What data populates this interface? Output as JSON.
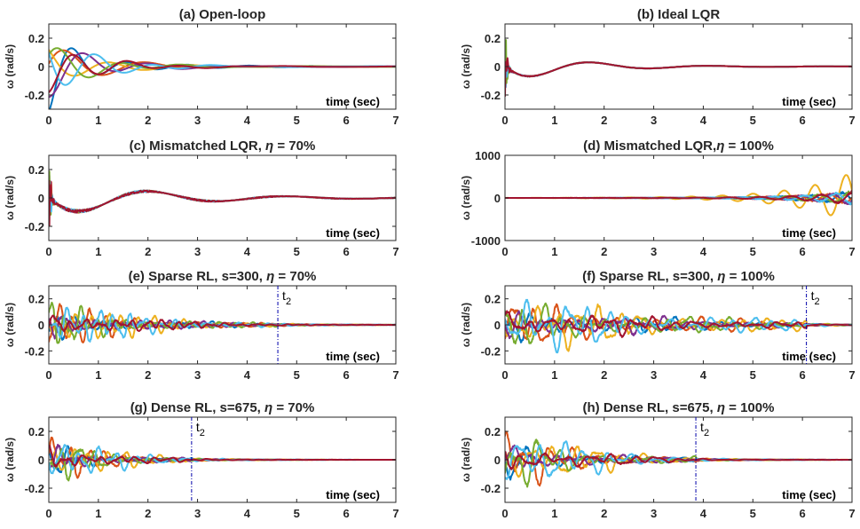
{
  "figure": {
    "y_symbol": "ω",
    "y_unit": "(rad/s)"
  },
  "colors": [
    "#0072BD",
    "#D95319",
    "#EDB120",
    "#7E2F8E",
    "#77AC30",
    "#4DBEEE",
    "#A2142F"
  ],
  "chart_data": [
    {
      "type": "line",
      "title_pre": "(a) Open-loop",
      "title_eta": "",
      "xlabel": "time (sec)",
      "ylabel": "ω (rad/s)",
      "xlim": [
        0,
        7
      ],
      "ylim": [
        -0.3,
        0.3
      ],
      "xticks": [
        0,
        1,
        2,
        3,
        4,
        5,
        6,
        7
      ],
      "yticks": [
        0.2,
        0,
        -0.2
      ],
      "ytick_labels": [
        "0.2",
        "0",
        "-0.2"
      ],
      "params": {
        "kind": "open",
        "amp": 0.22,
        "osc_f": 0.75,
        "decay": 1.1,
        "noise": 0,
        "settle": 7,
        "spread": 1.0,
        "seed": 1
      },
      "marker": null
    },
    {
      "type": "line",
      "title_pre": "(b) Ideal LQR",
      "title_eta": "",
      "xlabel": "time (sec)",
      "ylabel": "ω (rad/s)",
      "xlim": [
        0,
        7
      ],
      "ylim": [
        -0.3,
        0.3
      ],
      "xticks": [
        0,
        1,
        2,
        3,
        4,
        5,
        6,
        7
      ],
      "yticks": [
        0.2,
        0,
        -0.2
      ],
      "ytick_labels": [
        "0.2",
        "0",
        "-0.2"
      ],
      "params": {
        "kind": "lqr",
        "amp": 0.1,
        "osc_f": 0.42,
        "decay": 0.7,
        "noise": 0,
        "settle": 7,
        "spread": 0.15,
        "seed": 2
      },
      "marker": null
    },
    {
      "type": "line",
      "title_pre": "(c) Mismatched LQR, ",
      "title_eta": " = 70%",
      "xlabel": "time (sec)",
      "ylabel": "ω (rad/s)",
      "xlim": [
        0,
        7
      ],
      "ylim": [
        -0.3,
        0.3
      ],
      "xticks": [
        0,
        1,
        2,
        3,
        4,
        5,
        6,
        7
      ],
      "yticks": [
        0.2,
        0,
        -0.2
      ],
      "ytick_labels": [
        "0.2",
        "0",
        "-0.2"
      ],
      "params": {
        "kind": "lqr",
        "amp": 0.13,
        "osc_f": 0.36,
        "decay": 0.5,
        "noise": 0,
        "settle": 7,
        "spread": 0.5,
        "seed": 3
      },
      "marker": null
    },
    {
      "type": "line",
      "title_pre": "(d) Mismatched LQR,",
      "title_eta": " = 100%",
      "xlabel": "time (sec)",
      "ylabel": "ω (rad/s)",
      "xlim": [
        0,
        7
      ],
      "ylim": [
        -1000,
        1000
      ],
      "xticks": [
        0,
        1,
        2,
        3,
        4,
        5,
        6,
        7
      ],
      "yticks": [
        1000,
        0,
        -1000
      ],
      "ytick_labels": [
        "1000",
        "0",
        "-1000"
      ],
      "params": {
        "kind": "unstable",
        "amp": 600,
        "osc_f": 1.6,
        "decay": 0,
        "noise": 0,
        "settle": 7,
        "spread": 1.0,
        "seed": 4
      },
      "marker": null
    },
    {
      "type": "line",
      "title_pre": "(e) Sparse RL, s=300, ",
      "title_eta": " = 70%",
      "xlabel": "time (sec)",
      "ylabel": "ω (rad/s)",
      "xlim": [
        0,
        7
      ],
      "ylim": [
        -0.3,
        0.3
      ],
      "xticks": [
        0,
        1,
        2,
        3,
        4,
        5,
        6,
        7
      ],
      "yticks": [
        0.2,
        0,
        -0.2
      ],
      "ytick_labels": [
        "0.2",
        "0",
        "-0.2"
      ],
      "params": {
        "kind": "rl",
        "amp": 0.24,
        "osc_f": 3.2,
        "decay": 0.55,
        "noise": 1,
        "settle": 4.62,
        "spread": 0.6,
        "seed": 5
      },
      "marker": {
        "x": 4.62,
        "label_base": "t",
        "label_sub": "2"
      }
    },
    {
      "type": "line",
      "title_pre": "(f) Sparse RL, s=300, ",
      "title_eta": " = 100%",
      "xlabel": "time (sec)",
      "ylabel": "ω (rad/s)",
      "xlim": [
        0,
        7
      ],
      "ylim": [
        -0.3,
        0.3
      ],
      "xticks": [
        0,
        1,
        2,
        3,
        4,
        5,
        6,
        7
      ],
      "yticks": [
        0.2,
        0,
        -0.2
      ],
      "ytick_labels": [
        "0.2",
        "0",
        "-0.2"
      ],
      "params": {
        "kind": "rl",
        "amp": 0.25,
        "osc_f": 2.4,
        "decay": 0.3,
        "noise": 1,
        "settle": 6.08,
        "spread": 0.8,
        "seed": 6
      },
      "marker": {
        "x": 6.08,
        "label_base": "t",
        "label_sub": "2"
      }
    },
    {
      "type": "line",
      "title_pre": "(g) Dense  RL, s=675, ",
      "title_eta": " = 70%",
      "xlabel": "time (sec)",
      "ylabel": "ω (rad/s)",
      "xlim": [
        0,
        7
      ],
      "ylim": [
        -0.3,
        0.3
      ],
      "xticks": [
        0,
        1,
        2,
        3,
        4,
        5,
        6,
        7
      ],
      "yticks": [
        0.2,
        0,
        -0.2
      ],
      "ytick_labels": [
        "0.2",
        "0",
        "-0.2"
      ],
      "params": {
        "kind": "rl",
        "amp": 0.24,
        "osc_f": 2.8,
        "decay": 0.85,
        "noise": 1,
        "settle": 2.88,
        "spread": 0.6,
        "seed": 7
      },
      "marker": {
        "x": 2.88,
        "label_base": "t",
        "label_sub": "2"
      }
    },
    {
      "type": "line",
      "title_pre": "(h) Dense RL, s=675, ",
      "title_eta": " = 100%",
      "xlabel": "time (sec)",
      "ylabel": "ω (rad/s)",
      "xlim": [
        0,
        7
      ],
      "ylim": [
        -0.3,
        0.3
      ],
      "xticks": [
        0,
        1,
        2,
        3,
        4,
        5,
        6,
        7
      ],
      "yticks": [
        0.2,
        0,
        -0.2
      ],
      "ytick_labels": [
        "0.2",
        "0",
        "-0.2"
      ],
      "params": {
        "kind": "rl",
        "amp": 0.26,
        "osc_f": 2.2,
        "decay": 0.6,
        "noise": 1,
        "settle": 3.85,
        "spread": 0.8,
        "seed": 8
      },
      "marker": {
        "x": 3.85,
        "label_base": "t",
        "label_sub": "2"
      }
    }
  ]
}
